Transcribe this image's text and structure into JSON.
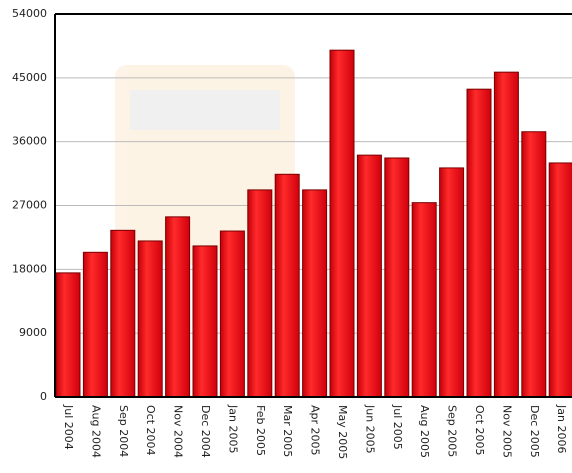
{
  "chart_data": {
    "type": "bar",
    "categories": [
      "Jul 2004",
      "Aug 2004",
      "Sep 2004",
      "Oct 2004",
      "Nov 2004",
      "Dec 2004",
      "Jan 2005",
      "Feb 2005",
      "Mar 2005",
      "Apr 2005",
      "May 2005",
      "Jun 2005",
      "Jul 2005",
      "Aug 2005",
      "Sep 2005",
      "Oct 2005",
      "Nov 2005",
      "Dec 2005",
      "Jan 2006"
    ],
    "values": [
      17500,
      20400,
      23500,
      22000,
      25400,
      21300,
      23400,
      29200,
      31400,
      29200,
      48900,
      34100,
      33700,
      27400,
      32300,
      43400,
      45800,
      37400,
      33000
    ],
    "color": "#ee1c24",
    "ylim": [
      0,
      54000
    ],
    "yticks": [
      0,
      9000,
      18000,
      27000,
      36000,
      45000,
      54000
    ],
    "grid": true
  }
}
